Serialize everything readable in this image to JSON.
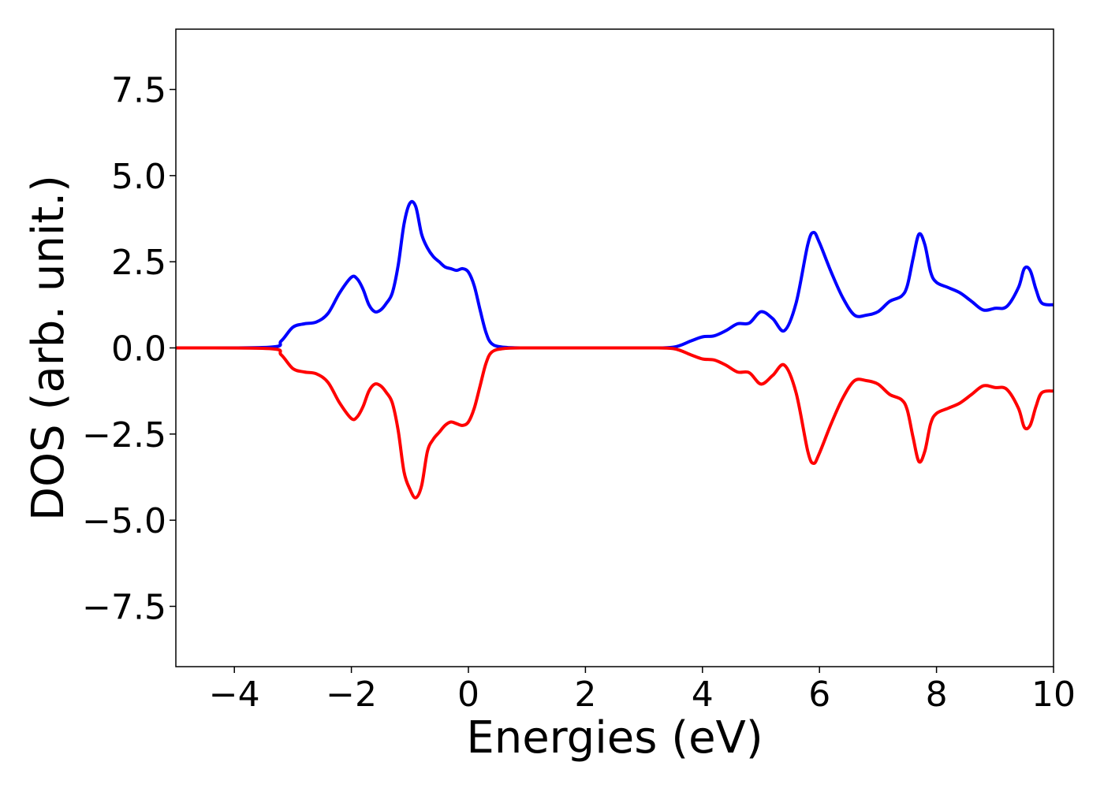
{
  "chart_data": {
    "type": "line",
    "title": "",
    "xlabel": "Energies (eV)",
    "ylabel": "DOS (arb. unit.)",
    "xlim": [
      -5,
      10
    ],
    "ylim": [
      -9.25,
      9.25
    ],
    "x_ticks": [
      -4,
      -2,
      0,
      2,
      4,
      6,
      8,
      10
    ],
    "x_tick_labels": [
      "−4",
      "−2",
      "0",
      "2",
      "4",
      "6",
      "8",
      "10"
    ],
    "y_ticks": [
      7.5,
      5.0,
      2.5,
      0.0,
      -2.5,
      -5.0,
      -7.5
    ],
    "y_tick_labels": [
      "7.5",
      "5.0",
      "2.5",
      "0.0",
      "−2.5",
      "−5.0",
      "−7.5"
    ],
    "grid": false,
    "legend": "none",
    "series": [
      {
        "color": "#0000ff",
        "x": [
          -5.0,
          -3.4,
          -3.2,
          -3.0,
          -2.8,
          -2.6,
          -2.4,
          -2.2,
          -2.0,
          -1.9,
          -1.8,
          -1.7,
          -1.6,
          -1.5,
          -1.4,
          -1.3,
          -1.2,
          -1.1,
          -1.0,
          -0.9,
          -0.8,
          -0.7,
          -0.6,
          -0.5,
          -0.4,
          -0.3,
          -0.2,
          -0.1,
          0.0,
          0.1,
          0.2,
          0.3,
          0.4,
          0.6,
          1.0,
          2.0,
          3.0,
          3.5,
          3.8,
          4.0,
          4.2,
          4.4,
          4.6,
          4.8,
          5.0,
          5.2,
          5.4,
          5.6,
          5.8,
          5.9,
          6.0,
          6.2,
          6.4,
          6.6,
          6.8,
          7.0,
          7.2,
          7.4,
          7.5,
          7.6,
          7.7,
          7.8,
          7.9,
          8.0,
          8.2,
          8.4,
          8.6,
          8.8,
          9.0,
          9.2,
          9.4,
          9.5,
          9.6,
          9.7,
          9.8,
          10.0
        ],
        "y": [
          0.0,
          0.02,
          0.2,
          0.6,
          0.7,
          0.75,
          1.0,
          1.6,
          2.05,
          2.0,
          1.7,
          1.25,
          1.05,
          1.1,
          1.3,
          1.6,
          2.4,
          3.6,
          4.2,
          4.1,
          3.3,
          2.9,
          2.65,
          2.5,
          2.35,
          2.3,
          2.25,
          2.3,
          2.2,
          1.8,
          1.1,
          0.45,
          0.12,
          0.02,
          0.0,
          0.0,
          0.0,
          0.02,
          0.2,
          0.32,
          0.35,
          0.5,
          0.7,
          0.72,
          1.05,
          0.85,
          0.5,
          1.3,
          3.0,
          3.35,
          3.05,
          2.2,
          1.45,
          0.95,
          0.95,
          1.05,
          1.35,
          1.5,
          1.8,
          2.6,
          3.3,
          3.0,
          2.2,
          1.9,
          1.75,
          1.6,
          1.35,
          1.1,
          1.15,
          1.2,
          1.75,
          2.3,
          2.25,
          1.7,
          1.3,
          1.25
        ]
      },
      {
        "color": "#ff0000",
        "x": [
          -5.0,
          -3.4,
          -3.2,
          -3.0,
          -2.8,
          -2.6,
          -2.4,
          -2.2,
          -2.0,
          -1.9,
          -1.8,
          -1.7,
          -1.6,
          -1.5,
          -1.4,
          -1.3,
          -1.2,
          -1.1,
          -1.0,
          -0.9,
          -0.8,
          -0.7,
          -0.6,
          -0.5,
          -0.4,
          -0.3,
          -0.2,
          -0.1,
          0.0,
          0.1,
          0.2,
          0.3,
          0.4,
          0.6,
          1.0,
          2.0,
          3.0,
          3.5,
          3.8,
          4.0,
          4.2,
          4.4,
          4.6,
          4.8,
          5.0,
          5.2,
          5.4,
          5.6,
          5.8,
          5.9,
          6.0,
          6.2,
          6.4,
          6.6,
          6.8,
          7.0,
          7.2,
          7.4,
          7.5,
          7.6,
          7.7,
          7.8,
          7.9,
          8.0,
          8.2,
          8.4,
          8.6,
          8.8,
          9.0,
          9.2,
          9.4,
          9.5,
          9.6,
          9.7,
          9.8,
          10.0
        ],
        "y": [
          0.0,
          -0.02,
          -0.2,
          -0.6,
          -0.7,
          -0.75,
          -1.0,
          -1.6,
          -2.05,
          -2.0,
          -1.7,
          -1.25,
          -1.05,
          -1.1,
          -1.3,
          -1.6,
          -2.4,
          -3.6,
          -4.1,
          -4.35,
          -4.0,
          -3.0,
          -2.65,
          -2.45,
          -2.25,
          -2.15,
          -2.2,
          -2.25,
          -2.15,
          -1.75,
          -1.1,
          -0.45,
          -0.12,
          -0.02,
          0.0,
          0.0,
          0.0,
          -0.02,
          -0.2,
          -0.32,
          -0.35,
          -0.5,
          -0.7,
          -0.72,
          -1.05,
          -0.8,
          -0.5,
          -1.3,
          -3.0,
          -3.35,
          -3.05,
          -2.2,
          -1.45,
          -0.95,
          -0.95,
          -1.05,
          -1.35,
          -1.5,
          -1.8,
          -2.6,
          -3.3,
          -3.0,
          -2.2,
          -1.9,
          -1.75,
          -1.6,
          -1.35,
          -1.1,
          -1.15,
          -1.2,
          -1.75,
          -2.3,
          -2.25,
          -1.7,
          -1.3,
          -1.25
        ]
      }
    ]
  }
}
